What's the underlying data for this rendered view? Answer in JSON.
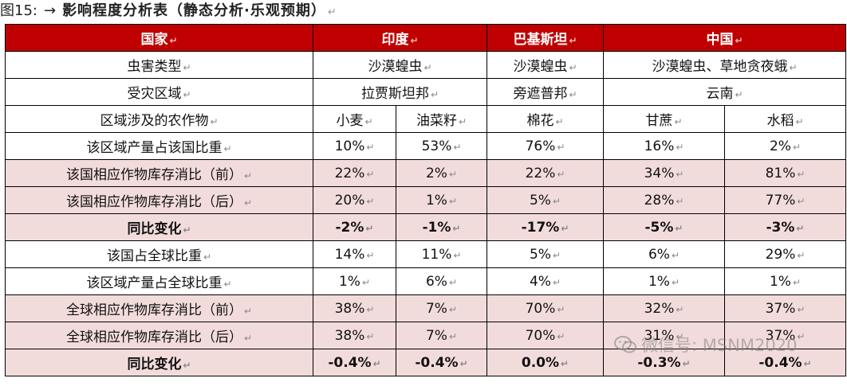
{
  "caption": {
    "label": "图15:",
    "arrow": "→",
    "title": "影响程度分析表（静态分析·乐观预期）",
    "mark": "↵"
  },
  "mark": "↵",
  "header": {
    "country": "国家",
    "india": "印度",
    "pakistan": "巴基斯坦",
    "china": "中国"
  },
  "rows": {
    "pest": {
      "label": "虫害类型",
      "india": "沙漠蝗虫",
      "pakistan": "沙漠蝗虫",
      "china": "沙漠蝗虫、草地贪夜蛾"
    },
    "region": {
      "label": "受灾区域",
      "india": "拉贾斯坦邦",
      "pakistan": "旁遮普邦",
      "china": "云南"
    },
    "crops": {
      "label": "区域涉及的农作物",
      "c1": "小麦",
      "c2": "油菜籽",
      "c3": "棉花",
      "c4": "甘蔗",
      "c5": "水稻"
    }
  },
  "data_rows": [
    {
      "label": "该区域产量占该国比重",
      "values": [
        "10%",
        "53%",
        "76%",
        "16%",
        "2%"
      ]
    },
    {
      "label": "该国相应作物库存消比（前）",
      "values": [
        "22%",
        "2%",
        "22%",
        "34%",
        "81%"
      ]
    },
    {
      "label": "该国相应作物库存消比（后）",
      "values": [
        "20%",
        "1%",
        "5%",
        "28%",
        "77%"
      ]
    },
    {
      "label": "同比变化",
      "values": [
        "-2%",
        "-1%",
        "-17%",
        "-5%",
        "-3%"
      ]
    },
    {
      "label": "该国占全球比重",
      "values": [
        "14%",
        "11%",
        "5%",
        "6%",
        "29%"
      ]
    },
    {
      "label": "该区域产量占全球比重",
      "values": [
        "1%",
        "6%",
        "4%",
        "1%",
        "1%"
      ]
    },
    {
      "label": "全球相应作物库存消比（前）",
      "values": [
        "38%",
        "7%",
        "70%",
        "32%",
        "37%"
      ]
    },
    {
      "label": "全球相应作物库存消比（后）",
      "values": [
        "38%",
        "7%",
        "70%",
        "31%",
        "37%"
      ]
    },
    {
      "label": "同比变化",
      "values": [
        "-0.4%",
        "-0.4%",
        "0.0%",
        "-0.3%",
        "-0.4%"
      ]
    }
  ],
  "watermark": {
    "text": "微信号: MSNM2020",
    "icon": "wechat-icon"
  }
}
